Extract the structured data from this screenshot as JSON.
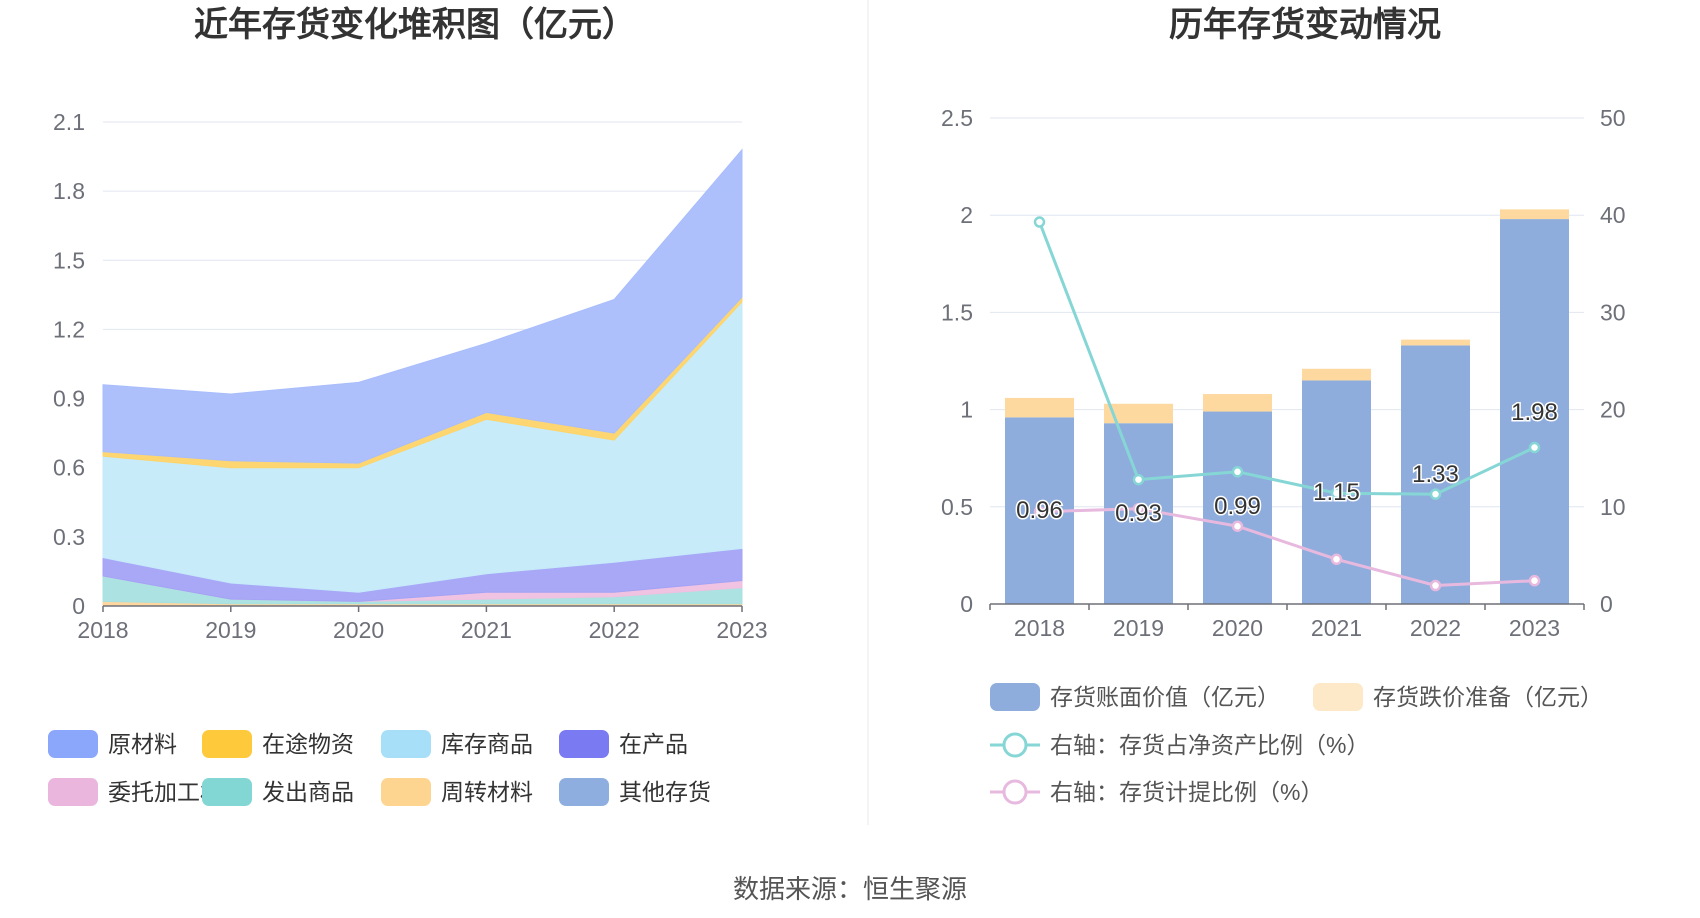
{
  "source_text": "数据来源：恒生聚源",
  "chart_data": [
    {
      "type": "area",
      "stacked": true,
      "title": "近年存货变化堆积图（亿元）",
      "categories": [
        "2018",
        "2019",
        "2020",
        "2021",
        "2022",
        "2023"
      ],
      "ylim": [
        0,
        2.1
      ],
      "yticks": [
        "0",
        "0.3",
        "0.6",
        "0.9",
        "1.2",
        "1.5",
        "1.8",
        "2.1"
      ],
      "grid": true,
      "legend_position": "bottom",
      "series": [
        {
          "name": "周转材料",
          "color": "#fdd59a",
          "values": [
            0.02,
            0.01,
            0.01,
            0.01,
            0.01,
            0.01
          ]
        },
        {
          "name": "发出商品",
          "color": "#a8e0e0",
          "values": [
            0.11,
            0.02,
            0.01,
            0.02,
            0.03,
            0.07
          ]
        },
        {
          "name": "委托加工材料",
          "color": "#f0c0e0",
          "values": [
            0.0,
            0.0,
            0.0,
            0.03,
            0.02,
            0.03
          ]
        },
        {
          "name": "在产品",
          "color": "#a3a3f5",
          "values": [
            0.08,
            0.07,
            0.04,
            0.08,
            0.13,
            0.14
          ]
        },
        {
          "name": "库存商品",
          "color": "#c5eafa",
          "values": [
            0.44,
            0.5,
            0.54,
            0.67,
            0.53,
            1.07
          ]
        },
        {
          "name": "在途物资",
          "color": "#fdd46a",
          "values": [
            0.02,
            0.03,
            0.02,
            0.03,
            0.03,
            0.02
          ]
        },
        {
          "name": "原材料",
          "color": "#a9bdfc",
          "values": [
            0.29,
            0.29,
            0.35,
            0.3,
            0.58,
            0.64
          ]
        },
        {
          "name": "其他存货",
          "color": "#8eaee0",
          "values": [
            0,
            0,
            0,
            0,
            0,
            0
          ]
        }
      ],
      "legend": [
        {
          "name": "原材料",
          "color": "#8aa7fb"
        },
        {
          "name": "在途物资",
          "color": "#ffc93c"
        },
        {
          "name": "库存商品",
          "color": "#a8dff8"
        },
        {
          "name": "在产品",
          "color": "#7a7af2"
        },
        {
          "name": "委托加工材料",
          "color": "#ebb6de"
        },
        {
          "name": "发出商品",
          "color": "#82d6d3"
        },
        {
          "name": "周转材料",
          "color": "#fdd590"
        },
        {
          "name": "其他存货",
          "color": "#8eaee0"
        }
      ]
    },
    {
      "type": "bar",
      "stacked": true,
      "title": "历年存货变动情况",
      "categories": [
        "2018",
        "2019",
        "2020",
        "2021",
        "2022",
        "2023"
      ],
      "ylim": [
        0,
        2.5
      ],
      "yticks": [
        "0",
        "0.5",
        "1",
        "1.5",
        "2",
        "2.5"
      ],
      "y2lim": [
        0,
        50
      ],
      "y2ticks": [
        "0",
        "10",
        "20",
        "30",
        "40",
        "50"
      ],
      "grid": true,
      "legend_position": "bottom",
      "bars": [
        {
          "name": "存货账面价值（亿元）",
          "color": "#8eaddc",
          "values": [
            0.96,
            0.93,
            0.99,
            1.15,
            1.33,
            1.98
          ],
          "labels": [
            "0.96",
            "0.93",
            "0.99",
            "1.15",
            "1.33",
            "1.98"
          ]
        },
        {
          "name": "存货跌价准备（亿元）",
          "color": "#fdd9a0",
          "legend_color": "#fde8c8",
          "values": [
            0.1,
            0.1,
            0.09,
            0.06,
            0.03,
            0.05
          ]
        }
      ],
      "lines": [
        {
          "name": "右轴：存货占净资产比例（%）",
          "color": "#86d6d6",
          "axis": "right",
          "values": [
            39.3,
            12.8,
            13.6,
            11.4,
            11.3,
            16.1
          ]
        },
        {
          "name": "右轴：存货计提比例（%）",
          "color": "#e8b9de",
          "axis": "right",
          "values": [
            9.5,
            9.8,
            8.0,
            4.6,
            1.9,
            2.4
          ]
        }
      ]
    }
  ]
}
